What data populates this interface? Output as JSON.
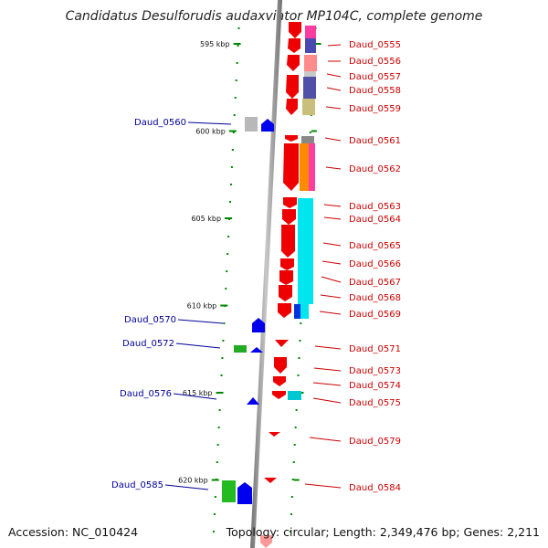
{
  "title": "Candidatus Desulforudis audaxviator MP104C, complete genome",
  "accession": "Accession: NC_010424",
  "topology": "Topology: circular; Length: 2,349,476 bp; Genes: 2,211",
  "colors": {
    "forward": "#ff0000",
    "reverse": "#0000ff",
    "forward_label": "#cc0000",
    "reverse_label": "#000099",
    "axis": "#999999",
    "tick": "#008800"
  },
  "scale": {
    "unit": "kbp",
    "ticks": [
      {
        "kbp": 595,
        "label": "595 kbp"
      },
      {
        "kbp": 600,
        "label": "600 kbp"
      },
      {
        "kbp": 605,
        "label": "605 kbp"
      },
      {
        "kbp": 610,
        "label": "610 kbp"
      },
      {
        "kbp": 615,
        "label": "615 kbp"
      },
      {
        "kbp": 620,
        "label": "620 kbp"
      }
    ]
  },
  "forward_genes": [
    {
      "label": "Daud_0555"
    },
    {
      "label": "Daud_0556"
    },
    {
      "label": "Daud_0557"
    },
    {
      "label": "Daud_0558"
    },
    {
      "label": "Daud_0559"
    },
    {
      "label": "Daud_0561"
    },
    {
      "label": "Daud_0562"
    },
    {
      "label": "Daud_0563"
    },
    {
      "label": "Daud_0564"
    },
    {
      "label": "Daud_0565"
    },
    {
      "label": "Daud_0566"
    },
    {
      "label": "Daud_0567"
    },
    {
      "label": "Daud_0568"
    },
    {
      "label": "Daud_0569"
    },
    {
      "label": "Daud_0571"
    },
    {
      "label": "Daud_0573"
    },
    {
      "label": "Daud_0574"
    },
    {
      "label": "Daud_0575"
    },
    {
      "label": "Daud_0579"
    },
    {
      "label": "Daud_0584"
    }
  ],
  "reverse_genes": [
    {
      "label": "Daud_0560"
    },
    {
      "label": "Daud_0570"
    },
    {
      "label": "Daud_0572"
    },
    {
      "label": "Daud_0576"
    },
    {
      "label": "Daud_0585"
    }
  ]
}
